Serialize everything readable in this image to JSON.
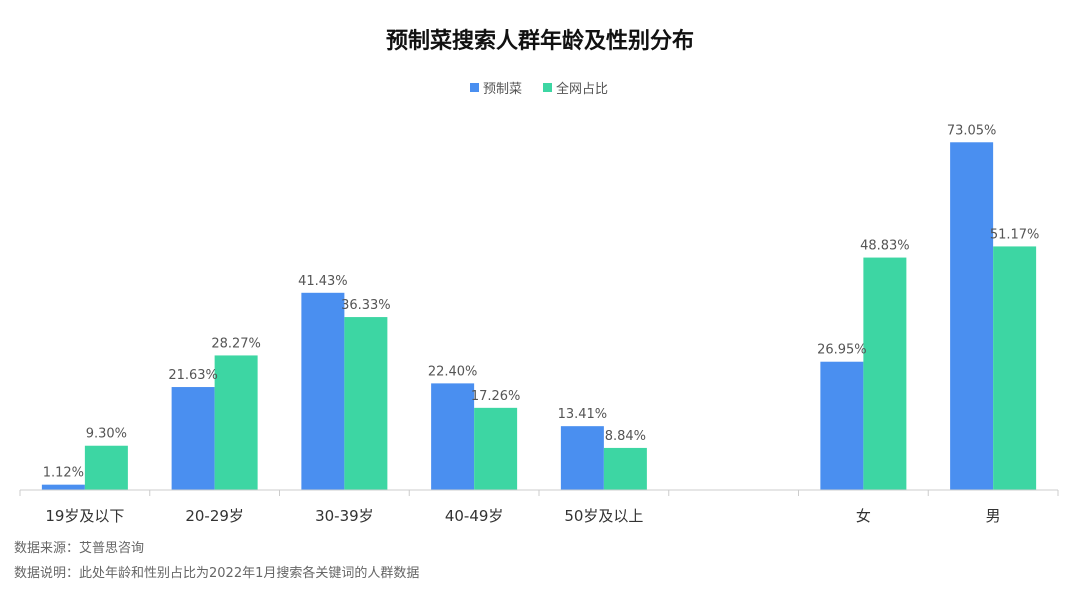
{
  "chart_data": {
    "type": "bar",
    "title": "预制菜搜索人群年龄及性别分布",
    "categories": [
      "19岁及以下",
      "20-29岁",
      "30-39岁",
      "40-49岁",
      "50岁及以上",
      "",
      "女",
      "男"
    ],
    "series": [
      {
        "name": "预制菜",
        "color": "#4a8ff0",
        "values": [
          1.12,
          21.63,
          41.43,
          22.4,
          13.41,
          null,
          26.95,
          73.05
        ],
        "labels": [
          "1.12%",
          "21.63%",
          "41.43%",
          "22.40%",
          "13.41%",
          "",
          "26.95%",
          "73.05%"
        ]
      },
      {
        "name": "全网占比",
        "color": "#3dd6a3",
        "values": [
          9.3,
          28.27,
          36.33,
          17.26,
          8.84,
          null,
          48.83,
          51.17
        ],
        "labels": [
          "9.30%",
          "28.27%",
          "36.33%",
          "17.26%",
          "8.84%",
          "",
          "48.83%",
          "51.17%"
        ]
      }
    ],
    "ylim": [
      0,
      80
    ],
    "grid": false,
    "legend_position": "top-center"
  },
  "footnotes": {
    "source": "数据来源：艾普思咨询",
    "note": "数据说明：此处年龄和性别占比为2022年1月搜索各关键词的人群数据"
  }
}
